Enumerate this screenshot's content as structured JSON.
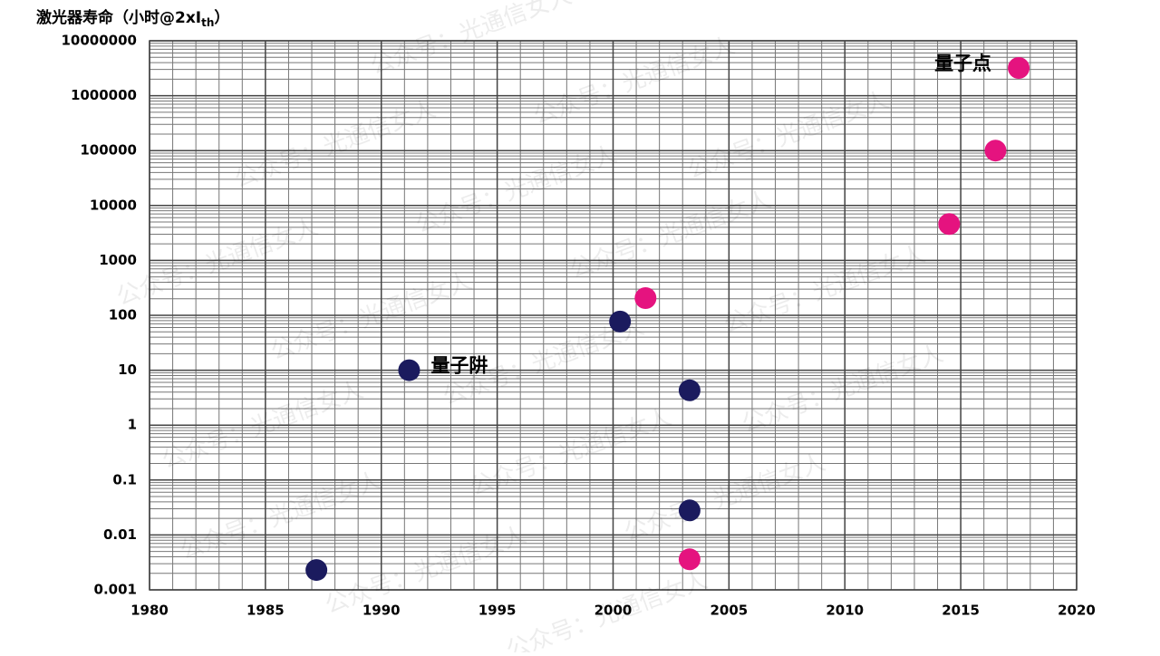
{
  "chart_data": {
    "type": "scatter",
    "title": {
      "text": "激光器寿命（小时@2xI",
      "subscript": "th",
      "suffix": "）"
    },
    "watermark": "公众号：光通信女人",
    "xlim": [
      1980,
      2020
    ],
    "xticks": [
      1980,
      1985,
      1990,
      1995,
      2000,
      2005,
      2010,
      2015,
      2020
    ],
    "ylim": [
      0.001,
      10000000
    ],
    "yticks": [
      0.001,
      0.01,
      0.1,
      1,
      10,
      100,
      1000,
      10000,
      100000,
      1000000,
      10000000
    ],
    "log_y": true,
    "grid": true,
    "minor_grid": true,
    "series": [
      {
        "name": "量子阱",
        "color": "#1b1b5e",
        "x": [
          1987.2,
          1991.2,
          2000.3,
          2003.3,
          2003.3
        ],
        "values": [
          0.0023,
          10,
          77,
          4.3,
          0.028
        ]
      },
      {
        "name": "量子点",
        "color": "#e5137f",
        "x": [
          2001.4,
          2003.3,
          2014.5,
          2016.5,
          2017.5
        ],
        "values": [
          206,
          0.0036,
          4600,
          100000,
          3200000
        ]
      }
    ]
  }
}
